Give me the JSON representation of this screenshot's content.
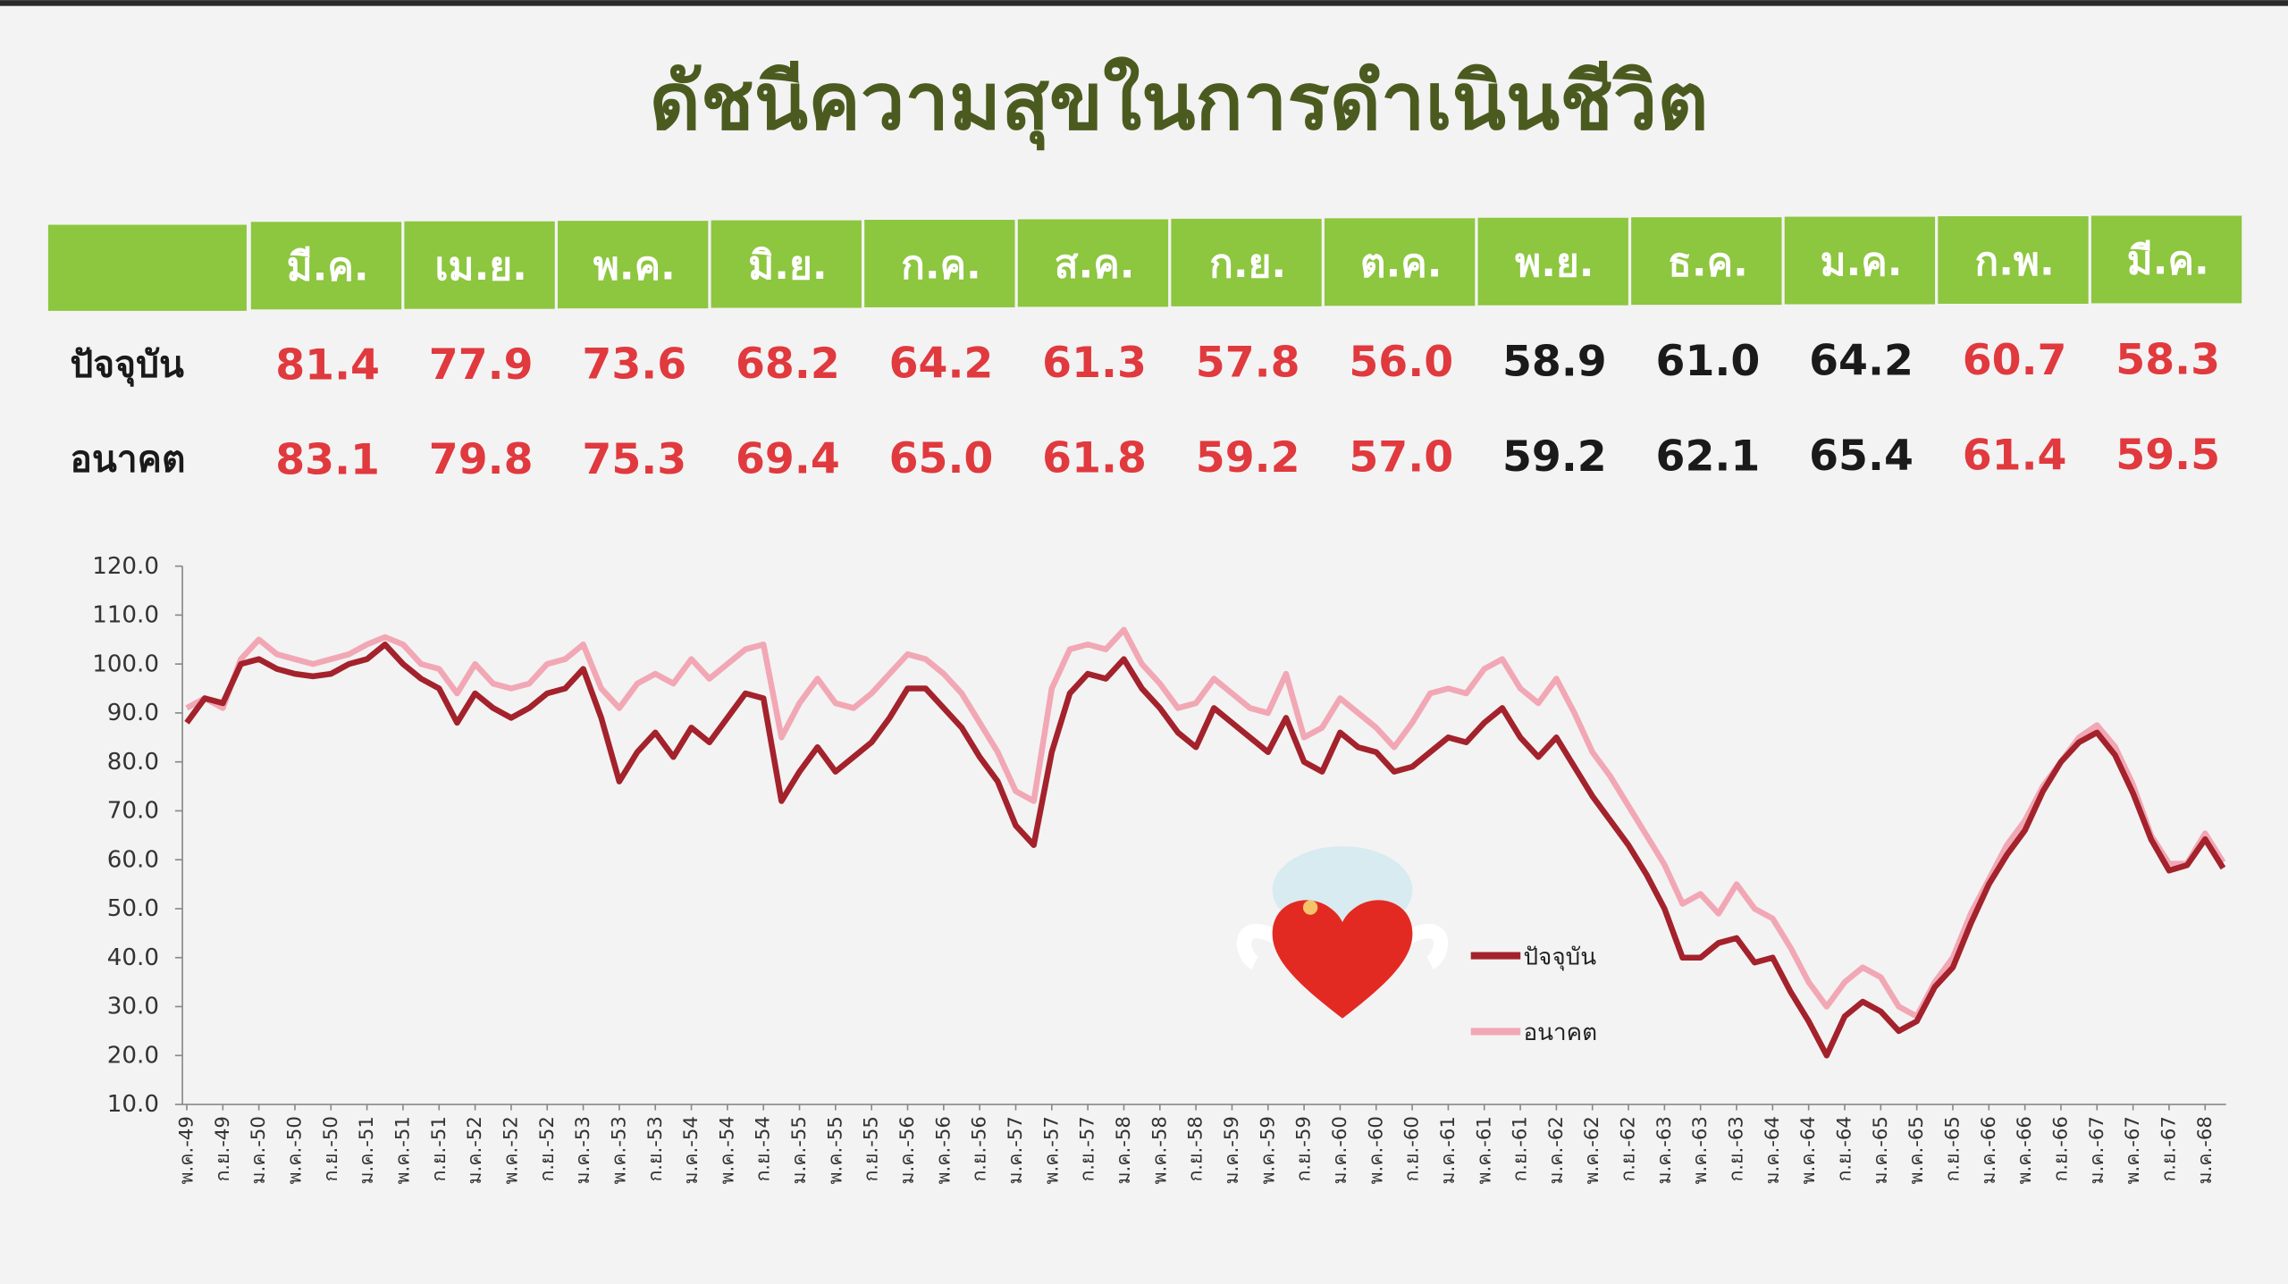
{
  "title": "ดัชนีความสุขในการดำเนินชีวิต",
  "table": {
    "header": [
      "มี.ค.",
      "เม.ย.",
      "พ.ค.",
      "มิ.ย.",
      "ก.ค.",
      "ส.ค.",
      "ก.ย.",
      "ต.ค.",
      "พ.ย.",
      "ธ.ค.",
      "ม.ค.",
      "ก.พ.",
      "มี.ค."
    ],
    "rows": [
      {
        "label": "ปัจจุบัน",
        "values": [
          "81.4",
          "77.9",
          "73.6",
          "68.2",
          "64.2",
          "61.3",
          "57.8",
          "56.0",
          "58.9",
          "61.0",
          "64.2",
          "60.7",
          "58.3"
        ],
        "colors": [
          "#e0393e",
          "#e0393e",
          "#e0393e",
          "#e0393e",
          "#e0393e",
          "#e0393e",
          "#e0393e",
          "#e0393e",
          "#1a1a1a",
          "#1a1a1a",
          "#1a1a1a",
          "#e0393e",
          "#e0393e"
        ]
      },
      {
        "label": "อนาคต",
        "values": [
          "83.1",
          "79.8",
          "75.3",
          "69.4",
          "65.0",
          "61.8",
          "59.2",
          "57.0",
          "59.2",
          "62.1",
          "65.4",
          "61.4",
          "59.5"
        ],
        "colors": [
          "#e0393e",
          "#e0393e",
          "#e0393e",
          "#e0393e",
          "#e0393e",
          "#e0393e",
          "#e0393e",
          "#e0393e",
          "#1a1a1a",
          "#1a1a1a",
          "#1a1a1a",
          "#e0393e",
          "#e0393e"
        ]
      }
    ]
  },
  "chart_data": {
    "type": "line",
    "categories": [
      "พ.ค.-49",
      null,
      "ก.ย.-49",
      null,
      "ม.ค.-50",
      null,
      "พ.ค.-50",
      null,
      "ก.ย.-50",
      null,
      "ม.ค.-51",
      null,
      "พ.ค.-51",
      null,
      "ก.ย.-51",
      null,
      "ม.ค.-52",
      null,
      "พ.ค.-52",
      null,
      "ก.ย.-52",
      null,
      "ม.ค.-53",
      null,
      "พ.ค.-53",
      null,
      "ก.ย.-53",
      null,
      "ม.ค.-54",
      null,
      "พ.ค.-54",
      null,
      "ก.ย.-54",
      null,
      "ม.ค.-55",
      null,
      "พ.ค.-55",
      null,
      "ก.ย.-55",
      null,
      "ม.ค.-56",
      null,
      "พ.ค.-56",
      null,
      "ก.ย.-56",
      null,
      "ม.ค.-57",
      null,
      "พ.ค.-57",
      null,
      "ก.ย.-57",
      null,
      "ม.ค.-58",
      null,
      "พ.ค.-58",
      null,
      "ก.ย.-58",
      null,
      "ม.ค.-59",
      null,
      "พ.ค.-59",
      null,
      "ก.ย.-59",
      null,
      "ม.ค.-60",
      null,
      "พ.ค.-60",
      null,
      "ก.ย.-60",
      null,
      "ม.ค.-61",
      null,
      "พ.ค.-61",
      null,
      "ก.ย.-61",
      null,
      "ม.ค.-62",
      null,
      "พ.ค.-62",
      null,
      "ก.ย.-62",
      null,
      "ม.ค.-63",
      null,
      "พ.ค.-63",
      null,
      "ก.ย.-63",
      null,
      "ม.ค.-64",
      null,
      "พ.ค.-64",
      null,
      "ก.ย.-64",
      null,
      "ม.ค.-65",
      null,
      "พ.ค.-65",
      null,
      "ก.ย.-65",
      null,
      "ม.ค.-66",
      null,
      "พ.ค.-66",
      null,
      "ก.ย.-66",
      null,
      "ม.ค.-67",
      null,
      "พ.ค.-67",
      null,
      "ก.ย.-67",
      null,
      "ม.ค.-68",
      null
    ],
    "series": [
      {
        "name": "ปัจจุบัน",
        "color": "#a3222c",
        "values": [
          88,
          93,
          92,
          100,
          101,
          99,
          98,
          97.5,
          98,
          100,
          101,
          104,
          100,
          97,
          95,
          88,
          94,
          91,
          89,
          91,
          94,
          95,
          99,
          89,
          76,
          82,
          86,
          81,
          87,
          84,
          89,
          94,
          93,
          72,
          78,
          83,
          78,
          81,
          84,
          89,
          95,
          95,
          91,
          87,
          81,
          76,
          67,
          63,
          82,
          94,
          98,
          97,
          101,
          95,
          91,
          86,
          83,
          91,
          88,
          85,
          82,
          89,
          80,
          78,
          86,
          83,
          82,
          78,
          79,
          82,
          85,
          84,
          88,
          91,
          85,
          81,
          85,
          79,
          73,
          68,
          63,
          57,
          50,
          40,
          40,
          43,
          44,
          39,
          40,
          33,
          27,
          20,
          28,
          31,
          29,
          25,
          27,
          34,
          38,
          47,
          55,
          61,
          66,
          74,
          80,
          84,
          86,
          81.4,
          73.6,
          64.2,
          57.8,
          58.9,
          64.2,
          58.3
        ]
      },
      {
        "name": "อนาคต",
        "color": "#f2a7b5",
        "values": [
          91,
          93,
          91,
          101,
          105,
          102,
          101,
          100,
          101,
          102,
          104,
          105.5,
          104,
          100,
          99,
          94,
          100,
          96,
          95,
          96,
          100,
          101,
          104,
          95,
          91,
          96,
          98,
          96,
          101,
          97,
          100,
          103,
          104,
          85,
          92,
          97,
          92,
          91,
          94,
          98,
          102,
          101,
          98,
          94,
          88,
          82,
          74,
          72,
          95,
          103,
          104,
          103,
          107,
          100,
          96,
          91,
          92,
          97,
          94,
          91,
          90,
          98,
          85,
          87,
          93,
          90,
          87,
          83,
          88,
          94,
          95,
          94,
          99,
          101,
          95,
          92,
          97,
          90,
          82,
          77,
          71,
          65,
          59,
          51,
          53,
          49,
          55,
          50,
          48,
          42,
          35,
          30,
          35,
          38,
          36,
          30,
          28,
          35,
          40,
          49,
          56,
          63,
          68,
          75,
          80,
          85,
          87.5,
          83.1,
          75.3,
          65.0,
          59.2,
          59.2,
          65.4,
          59.5
        ]
      }
    ],
    "ylim": [
      10,
      120
    ],
    "yticks": [
      {
        "value": 10,
        "label": "10.0"
      },
      {
        "value": 20,
        "label": "20.0"
      },
      {
        "value": 30,
        "label": "30.0"
      },
      {
        "value": 40,
        "label": "40.0"
      },
      {
        "value": 50,
        "label": "50.0"
      },
      {
        "value": 60,
        "label": "60.0"
      },
      {
        "value": 70,
        "label": "70.0"
      },
      {
        "value": 80,
        "label": "80.0"
      },
      {
        "value": 90,
        "label": "90.0"
      },
      {
        "value": 100,
        "label": "100.0"
      },
      {
        "value": 110,
        "label": "110.0"
      },
      {
        "value": 120,
        "label": "120.0"
      }
    ]
  }
}
